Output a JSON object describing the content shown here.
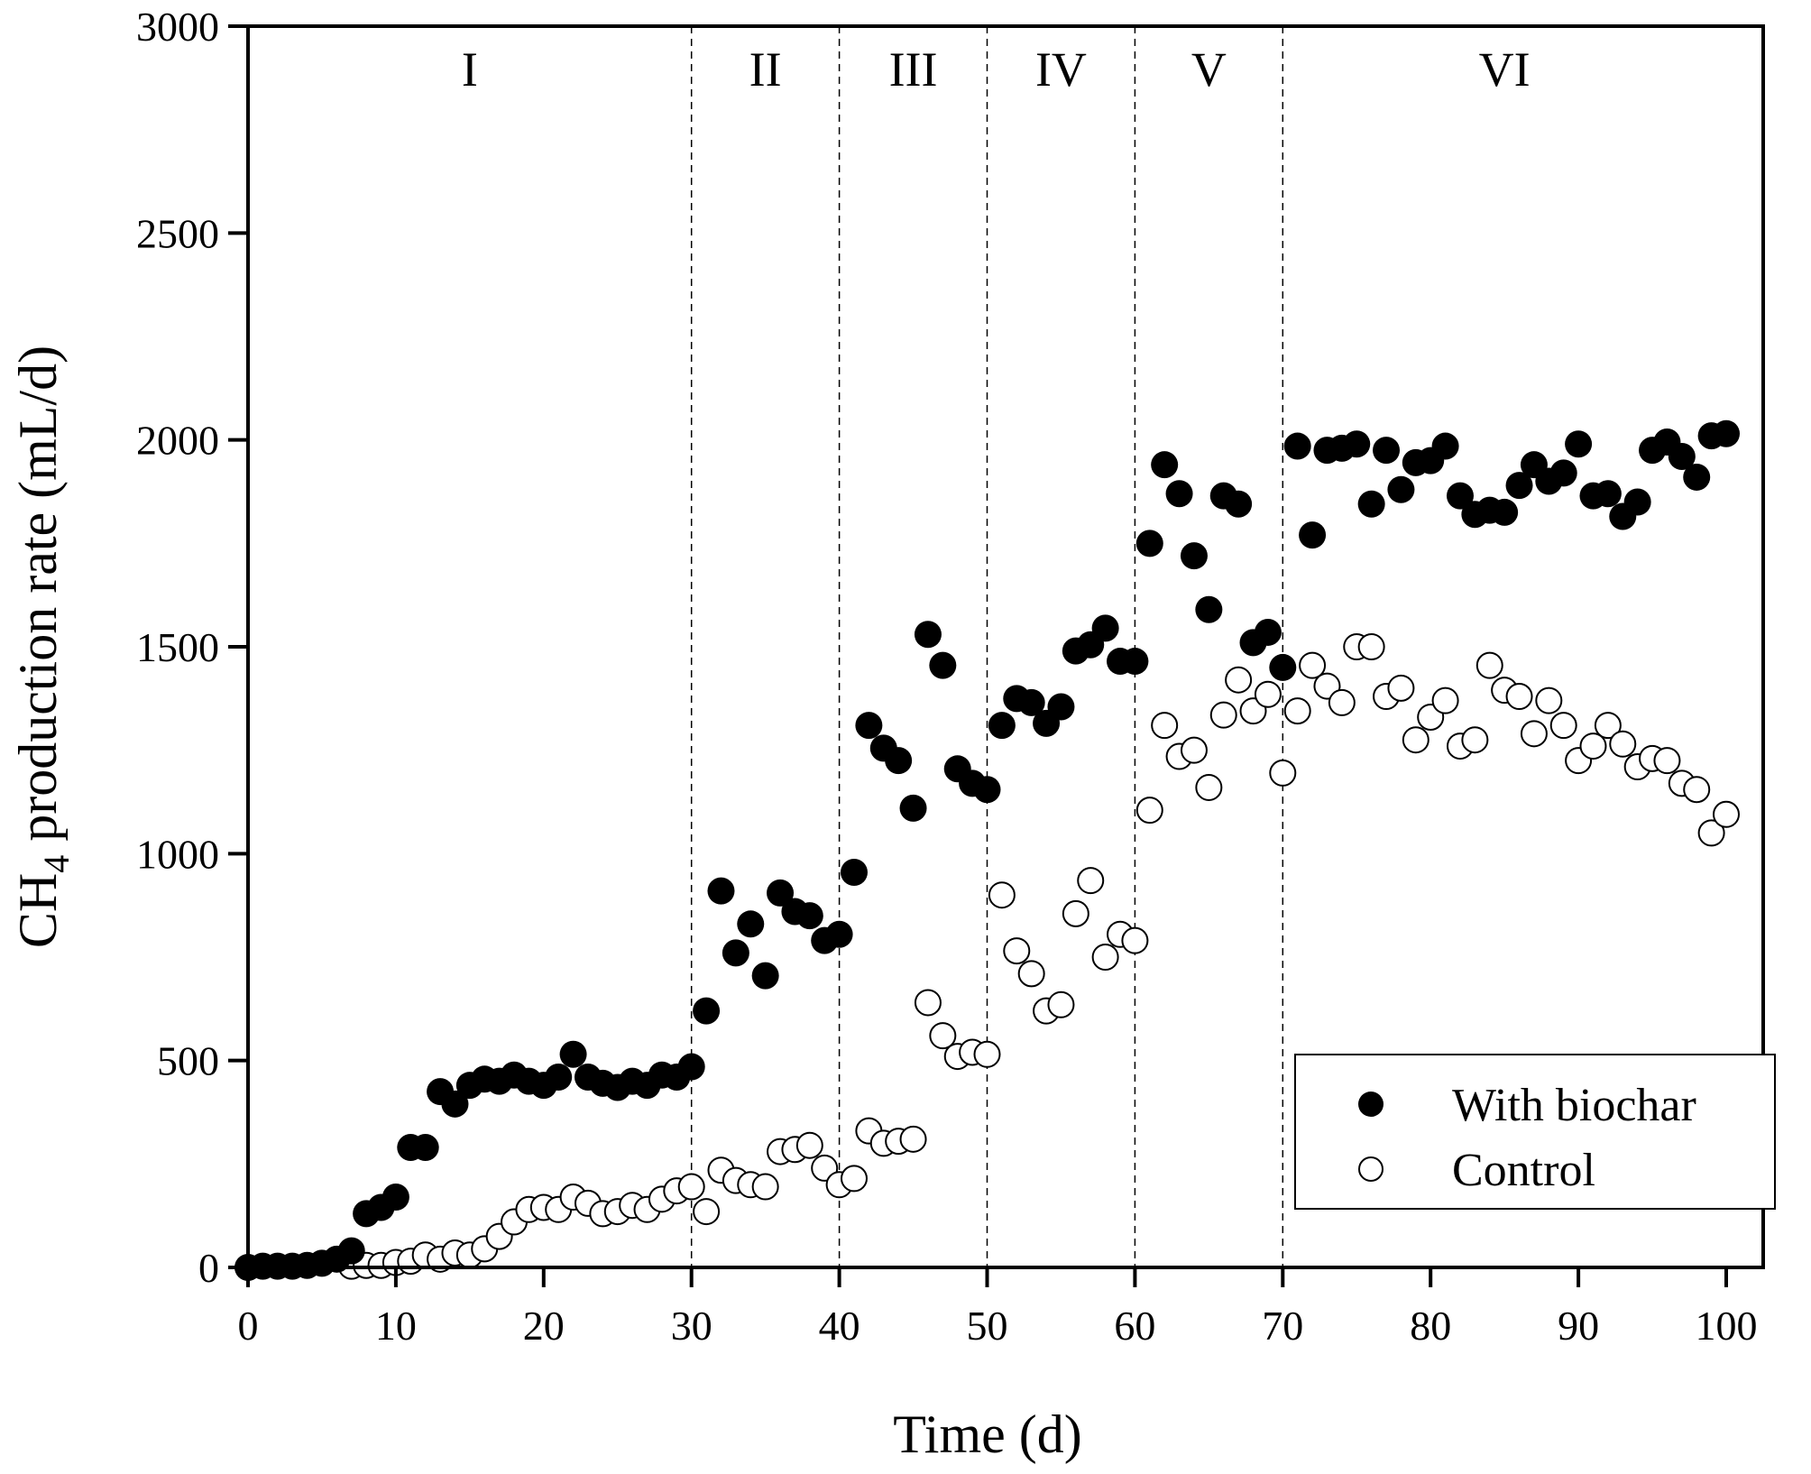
{
  "chart_data": {
    "type": "scatter",
    "xlabel": "Time (d)",
    "ylabel_main": "CH",
    "ylabel_sub": "4",
    "ylabel_rest": " production rate (mL/d)",
    "xlim": [
      0,
      100
    ],
    "ylim": [
      0,
      3000
    ],
    "xticks": [
      0,
      10,
      20,
      30,
      40,
      50,
      60,
      70,
      80,
      90,
      100
    ],
    "yticks": [
      0,
      500,
      1000,
      1500,
      2000,
      2500,
      3000
    ],
    "grid": false,
    "legend_position": "bottom-right",
    "phase_boundaries": [
      30,
      40,
      50,
      60,
      70
    ],
    "phases": [
      {
        "label": "I",
        "center": 15
      },
      {
        "label": "II",
        "center": 35
      },
      {
        "label": "III",
        "center": 45
      },
      {
        "label": "IV",
        "center": 55
      },
      {
        "label": "V",
        "center": 65
      },
      {
        "label": "VI",
        "center": 85
      }
    ],
    "series": [
      {
        "name": "With biochar",
        "marker": "filled-circle",
        "color": "#000000",
        "x": [
          0,
          1,
          2,
          3,
          4,
          5,
          6,
          7,
          8,
          9,
          10,
          11,
          12,
          13,
          14,
          15,
          16,
          17,
          18,
          19,
          20,
          21,
          22,
          23,
          24,
          25,
          26,
          27,
          28,
          29,
          30,
          31,
          32,
          33,
          34,
          35,
          36,
          37,
          38,
          39,
          40,
          41,
          42,
          43,
          44,
          45,
          46,
          47,
          48,
          49,
          50,
          51,
          52,
          53,
          54,
          55,
          56,
          57,
          58,
          59,
          60,
          61,
          62,
          63,
          64,
          65,
          66,
          67,
          68,
          69,
          70,
          71,
          72,
          73,
          74,
          75,
          76,
          77,
          78,
          79,
          80,
          81,
          82,
          83,
          84,
          85,
          86,
          87,
          88,
          89,
          90,
          91,
          92,
          93,
          94,
          95,
          96,
          97,
          98,
          99,
          100
        ],
        "y": [
          0,
          3,
          3,
          3,
          5,
          10,
          20,
          40,
          130,
          145,
          170,
          290,
          290,
          425,
          395,
          440,
          455,
          450,
          465,
          450,
          440,
          460,
          515,
          460,
          445,
          435,
          450,
          440,
          465,
          460,
          485,
          620,
          910,
          760,
          830,
          705,
          905,
          860,
          850,
          790,
          805,
          955,
          1310,
          1255,
          1225,
          1110,
          1530,
          1455,
          1205,
          1170,
          1155,
          1310,
          1375,
          1365,
          1315,
          1355,
          1490,
          1505,
          1545,
          1465,
          1465,
          1750,
          1940,
          1870,
          1720,
          1590,
          1865,
          1845,
          1510,
          1535,
          1450,
          1985,
          1770,
          1975,
          1980,
          1990,
          1845,
          1975,
          1880,
          1945,
          1950,
          1985,
          1865,
          1820,
          1830,
          1825,
          1890,
          1940,
          1900,
          1920,
          1990,
          1865,
          1870,
          1815,
          1850,
          1975,
          1995,
          1960,
          1910,
          2010,
          2015
        ]
      },
      {
        "name": "Control",
        "marker": "open-circle",
        "color": "#000000",
        "x": [
          7,
          8,
          9,
          10,
          11,
          12,
          13,
          14,
          15,
          16,
          17,
          18,
          19,
          20,
          21,
          22,
          23,
          24,
          25,
          26,
          27,
          28,
          29,
          30,
          31,
          32,
          33,
          34,
          35,
          36,
          37,
          38,
          39,
          40,
          41,
          42,
          43,
          44,
          45,
          46,
          47,
          48,
          49,
          50,
          51,
          52,
          53,
          54,
          55,
          56,
          57,
          58,
          59,
          60,
          61,
          62,
          63,
          64,
          65,
          66,
          67,
          68,
          69,
          70,
          71,
          72,
          73,
          74,
          75,
          76,
          77,
          78,
          79,
          80,
          81,
          82,
          83,
          84,
          85,
          86,
          87,
          88,
          89,
          90,
          91,
          92,
          93,
          94,
          95,
          96,
          97,
          98,
          99,
          100
        ],
        "y": [
          3,
          5,
          5,
          12,
          15,
          30,
          20,
          35,
          30,
          45,
          75,
          110,
          140,
          145,
          140,
          170,
          155,
          130,
          135,
          150,
          140,
          165,
          185,
          195,
          135,
          235,
          210,
          200,
          195,
          280,
          285,
          295,
          240,
          200,
          215,
          330,
          300,
          305,
          310,
          640,
          560,
          510,
          520,
          515,
          900,
          765,
          710,
          620,
          635,
          855,
          935,
          750,
          805,
          790,
          1105,
          1310,
          1235,
          1250,
          1160,
          1335,
          1420,
          1345,
          1385,
          1195,
          1345,
          1455,
          1405,
          1365,
          1500,
          1500,
          1380,
          1400,
          1275,
          1330,
          1370,
          1260,
          1275,
          1455,
          1395,
          1380,
          1290,
          1370,
          1310,
          1225,
          1260,
          1310,
          1265,
          1210,
          1230,
          1225,
          1170,
          1155,
          1050,
          1095
        ]
      }
    ]
  }
}
